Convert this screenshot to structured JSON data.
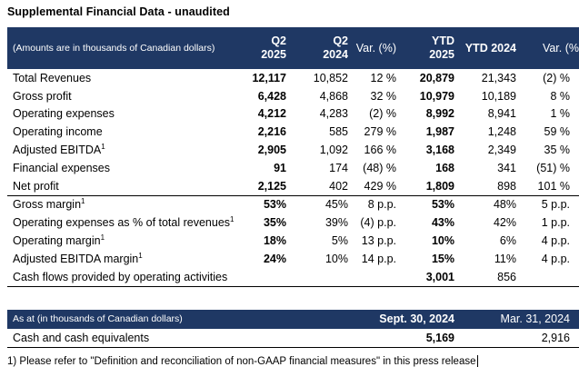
{
  "title": "Supplemental Financial Data - unaudited",
  "accent_color": "#1F3864",
  "table1": {
    "header": {
      "label": "(Amounts are in thousands of Canadian dollars)",
      "cols": [
        {
          "l1": "Q2",
          "l2": "2025"
        },
        {
          "l1": "Q2",
          "l2": "2024"
        },
        {
          "l1": "Var. (%)"
        },
        {
          "l1": "YTD",
          "l2": "2025"
        },
        {
          "l1": "YTD 2024"
        },
        {
          "l1": "Var. (%"
        }
      ]
    },
    "rows": [
      {
        "label": "Total Revenues",
        "values": [
          "12,117",
          "10,852",
          "12 %",
          "20,879",
          "21,343",
          "(2) %"
        ]
      },
      {
        "label": "Gross profit",
        "values": [
          "6,428",
          "4,868",
          "32 %",
          "10,979",
          "10,189",
          "8 %"
        ]
      },
      {
        "label": "Operating expenses",
        "values": [
          "4,212",
          "4,283",
          "(2) %",
          "8,992",
          "8,941",
          "1 %"
        ]
      },
      {
        "label": "Operating income",
        "values": [
          "2,216",
          "585",
          "279 %",
          "1,987",
          "1,248",
          "59 %"
        ]
      },
      {
        "label": "Adjusted EBITDA",
        "sup": "1",
        "values": [
          "2,905",
          "1,092",
          "166 %",
          "3,168",
          "2,349",
          "35 %"
        ]
      },
      {
        "label": "Financial expenses",
        "values": [
          "91",
          "174",
          "(48) %",
          "168",
          "341",
          "(51) %"
        ]
      },
      {
        "label": "Net profit",
        "values": [
          "2,125",
          "402",
          "429 %",
          "1,809",
          "898",
          "101 %"
        ],
        "section_end": true
      },
      {
        "label": "Gross margin",
        "sup": "1",
        "values": [
          "53%",
          "45%",
          "8 p.p.",
          "53%",
          "48%",
          "5 p.p."
        ]
      },
      {
        "label": "Operating expenses as % of total revenues",
        "sup": "1",
        "values": [
          "35%",
          "39%",
          "(4) p.p.",
          "43%",
          "42%",
          "1 p.p."
        ]
      },
      {
        "label": "Operating margin",
        "sup": "1",
        "values": [
          "18%",
          "5%",
          "13 p.p.",
          "10%",
          "6%",
          "4 p.p."
        ]
      },
      {
        "label": "Adjusted EBITDA margin",
        "sup": "1",
        "values": [
          "24%",
          "10%",
          "14 p.p.",
          "15%",
          "11%",
          "4 p.p."
        ]
      },
      {
        "label": "Cash flows provided by operating activities",
        "values": [
          "",
          "",
          "",
          "3,001",
          "856",
          ""
        ],
        "section_end": true
      }
    ]
  },
  "table2": {
    "header": {
      "label": "As at (in thousands of Canadian dollars)",
      "cols": [
        "Sept. 30, 2024",
        "Mar. 31, 2024"
      ]
    },
    "rows": [
      {
        "label": "Cash and cash equivalents",
        "values": [
          "5,169",
          "2,916"
        ]
      }
    ]
  },
  "footnote": "1) Please refer to \"Definition and reconciliation of non-GAAP financial measures\" in this press release"
}
